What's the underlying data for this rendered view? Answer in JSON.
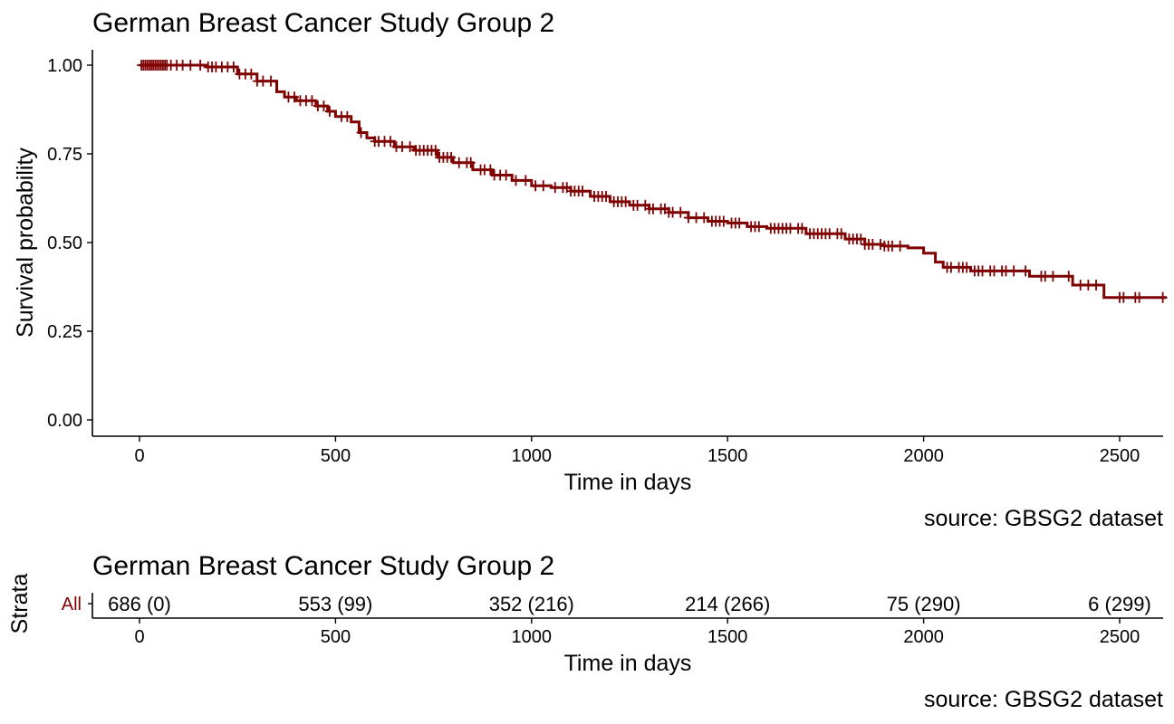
{
  "colors": {
    "curve": "#7f0000",
    "axis": "#000000",
    "strata_label": "#7f0000"
  },
  "chart_data": [
    {
      "type": "line",
      "subtype": "kaplan-meier survival curve with censor marks",
      "title": "German Breast Cancer Study Group 2",
      "xlabel": "Time in days",
      "ylabel": "Survival probability",
      "caption": "source: GBSG2 dataset",
      "xlim": [
        0,
        2620
      ],
      "ylim": [
        0,
        1.0
      ],
      "x_ticks": [
        0,
        500,
        1000,
        1500,
        2000,
        2500
      ],
      "y_ticks": [
        0,
        0.25,
        0.5,
        0.75,
        1.0
      ],
      "x_tick_labels": [
        "0",
        "500",
        "1000",
        "1500",
        "2000",
        "2500"
      ],
      "y_tick_labels": [
        "0.00",
        "0.25",
        "0.50",
        "0.75",
        "1.00"
      ],
      "grid": false,
      "legend": "none",
      "series": [
        {
          "x": [
            0,
            170,
            250,
            300,
            350,
            370,
            400,
            450,
            480,
            500,
            540,
            560,
            580,
            600,
            650,
            700,
            760,
            800,
            850,
            900,
            950,
            1000,
            1050,
            1100,
            1150,
            1200,
            1250,
            1300,
            1350,
            1400,
            1450,
            1500,
            1550,
            1600,
            1700,
            1800,
            1850,
            1900,
            1960,
            2000,
            2030,
            2050,
            2120,
            2270,
            2380,
            2450,
            2460,
            2620
          ],
          "y": [
            1.0,
            0.995,
            0.975,
            0.955,
            0.925,
            0.91,
            0.9,
            0.885,
            0.87,
            0.855,
            0.84,
            0.81,
            0.795,
            0.785,
            0.77,
            0.76,
            0.74,
            0.725,
            0.705,
            0.69,
            0.675,
            0.66,
            0.655,
            0.645,
            0.63,
            0.615,
            0.605,
            0.595,
            0.585,
            0.57,
            0.56,
            0.555,
            0.545,
            0.54,
            0.525,
            0.51,
            0.495,
            0.49,
            0.485,
            0.47,
            0.445,
            0.43,
            0.42,
            0.405,
            0.38,
            0.38,
            0.345,
            0.345
          ]
        }
      ],
      "censor_x": [
        5,
        10,
        15,
        20,
        25,
        30,
        35,
        40,
        45,
        50,
        55,
        60,
        65,
        70,
        80,
        95,
        110,
        130,
        155,
        175,
        185,
        195,
        210,
        225,
        240,
        255,
        270,
        285,
        300,
        315,
        335,
        380,
        395,
        410,
        425,
        440,
        455,
        470,
        485,
        515,
        530,
        565,
        600,
        610,
        625,
        640,
        655,
        670,
        690,
        705,
        715,
        725,
        735,
        745,
        755,
        765,
        775,
        785,
        795,
        815,
        835,
        845,
        870,
        880,
        895,
        905,
        920,
        935,
        960,
        985,
        1010,
        1030,
        1060,
        1080,
        1090,
        1100,
        1110,
        1120,
        1130,
        1160,
        1170,
        1180,
        1190,
        1210,
        1220,
        1230,
        1240,
        1260,
        1270,
        1290,
        1300,
        1310,
        1330,
        1340,
        1350,
        1360,
        1380,
        1400,
        1420,
        1440,
        1460,
        1470,
        1480,
        1490,
        1510,
        1520,
        1530,
        1560,
        1570,
        1580,
        1610,
        1620,
        1630,
        1640,
        1650,
        1660,
        1680,
        1690,
        1710,
        1720,
        1730,
        1740,
        1750,
        1760,
        1780,
        1790,
        1810,
        1820,
        1830,
        1840,
        1850,
        1860,
        1870,
        1890,
        1900,
        1910,
        1920,
        1940,
        2060,
        2070,
        2090,
        2100,
        2110,
        2130,
        2140,
        2150,
        2170,
        2180,
        2200,
        2210,
        2230,
        2260,
        2300,
        2310,
        2330,
        2370,
        2400,
        2420,
        2440,
        2500,
        2510,
        2540,
        2550,
        2610
      ]
    },
    {
      "type": "table",
      "subtype": "number at risk (number censored)",
      "title": "German Breast Cancer Study Group 2",
      "xlabel": "Time in days",
      "ylabel": "Strata",
      "caption": "source: GBSG2 dataset",
      "strata": [
        "All"
      ],
      "x_ticks": [
        0,
        500,
        1000,
        1500,
        2000,
        2500
      ],
      "x_tick_labels": [
        "0",
        "500",
        "1000",
        "1500",
        "2000",
        "2500"
      ],
      "rows": [
        {
          "strata": "All",
          "values": [
            "686 (0)",
            "553 (99)",
            "352 (216)",
            "214 (266)",
            "75 (290)",
            "6 (299)"
          ]
        }
      ]
    }
  ]
}
